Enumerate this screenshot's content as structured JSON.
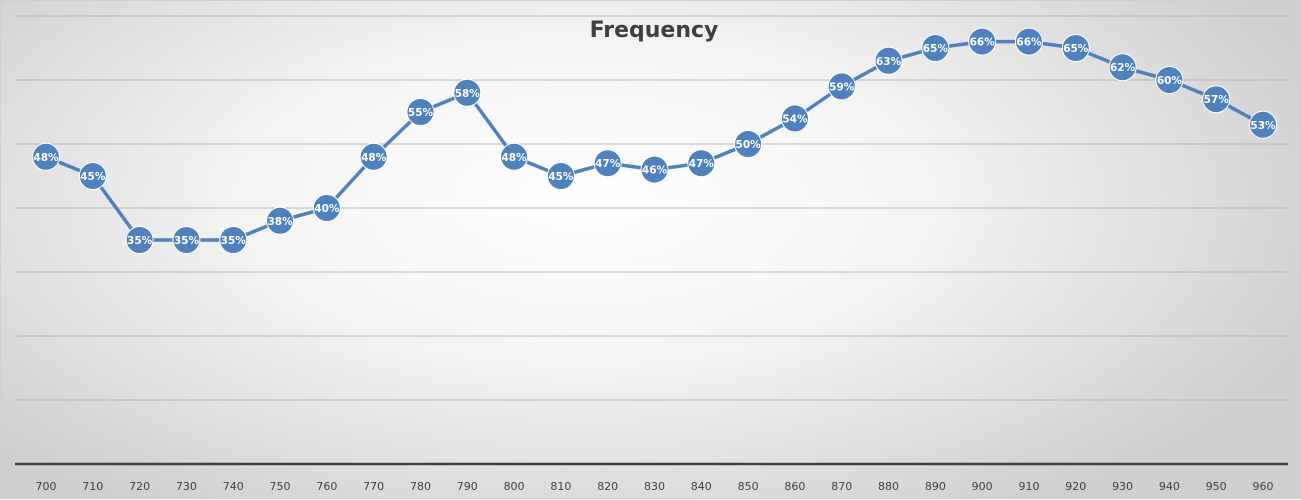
{
  "chart_data": {
    "type": "line",
    "title": "Frequency",
    "xlabel": "",
    "ylabel": "",
    "x": [
      "700",
      "710",
      "720",
      "730",
      "740",
      "750",
      "760",
      "770",
      "780",
      "790",
      "800",
      "810",
      "820",
      "830",
      "840",
      "850",
      "860",
      "870",
      "880",
      "890",
      "900",
      "910",
      "920",
      "930",
      "940",
      "950",
      "960"
    ],
    "series": [
      {
        "values": [
          48,
          45,
          35,
          35,
          35,
          38,
          40,
          48,
          55,
          58,
          48,
          45,
          47,
          46,
          47,
          50,
          54,
          59,
          63,
          65,
          66,
          66,
          65,
          62,
          60,
          57,
          53
        ],
        "labels": [
          "48%",
          "45%",
          "35%",
          "35%",
          "35%",
          "38%",
          "40%",
          "48%",
          "55%",
          "58%",
          "48%",
          "45%",
          "47%",
          "46%",
          "47%",
          "50%",
          "54%",
          "59%",
          "63%",
          "65%",
          "66%",
          "66%",
          "65%",
          "62%",
          "60%",
          "57%",
          "53%"
        ]
      }
    ],
    "ylim": [
      0,
      70
    ],
    "grid": true,
    "legend": "none",
    "y_tick_labels_shown": false,
    "colors": {
      "line": "#4f81bd",
      "marker": "#4f81bd",
      "marker_label": "#ffffff",
      "gridline": "#b8b8b8",
      "axis": "#404040",
      "title": "#3f3f3f"
    }
  }
}
